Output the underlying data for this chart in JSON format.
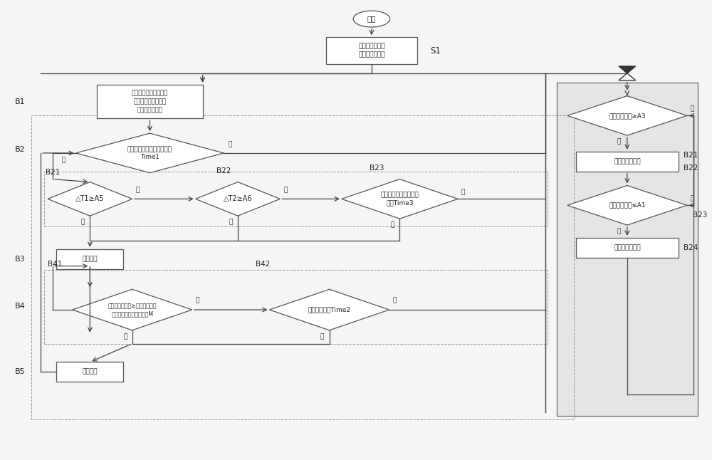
{
  "bg_color": "#f5f5f5",
  "box_color": "#ffffff",
  "box_edge": "#555555",
  "line_color": "#444444",
  "title": "开始",
  "s1_box": "第一控制阀开启\n第二控制阀关闭",
  "b1_box": "检测室内换热器温度、\n室外换热器进口温度\n和室外环境温度",
  "b2_diamond": "制热连续运行是否达到时间\nTime1",
  "b21_diamond": "△T1≥A5",
  "b22_diamond": "△T2≥A6",
  "b23_diamond": "连续时间是否达到设定\n时间Time3",
  "b3_box": "除霜运行",
  "b41_label": "B41",
  "b42_label": "B42",
  "b4l_diamond": "室外换热器温度≥室外环境温度\n所对应的室外换热器温度M",
  "b4r_diamond": "经过设定时间Time2",
  "b5_box": "退出除霜",
  "rd1_diamond": "蓄热装置温度≥A3",
  "rb1_box": "第一控制阀关闭",
  "rd2_diamond": "蓄热装置温度≤A1",
  "rb2_box": "第一控制阀开启",
  "lB1": "B1",
  "lB2": "B2",
  "lB21": "B21",
  "lB22": "B22",
  "lB23": "B23",
  "lB3": "B3",
  "lB4": "B4",
  "lB5": "B5",
  "lS1": "S1",
  "lRB21": "B21",
  "lRB22": "B22",
  "lRB23": "B23",
  "lRB24": "B24",
  "yes": "是",
  "no": "否"
}
